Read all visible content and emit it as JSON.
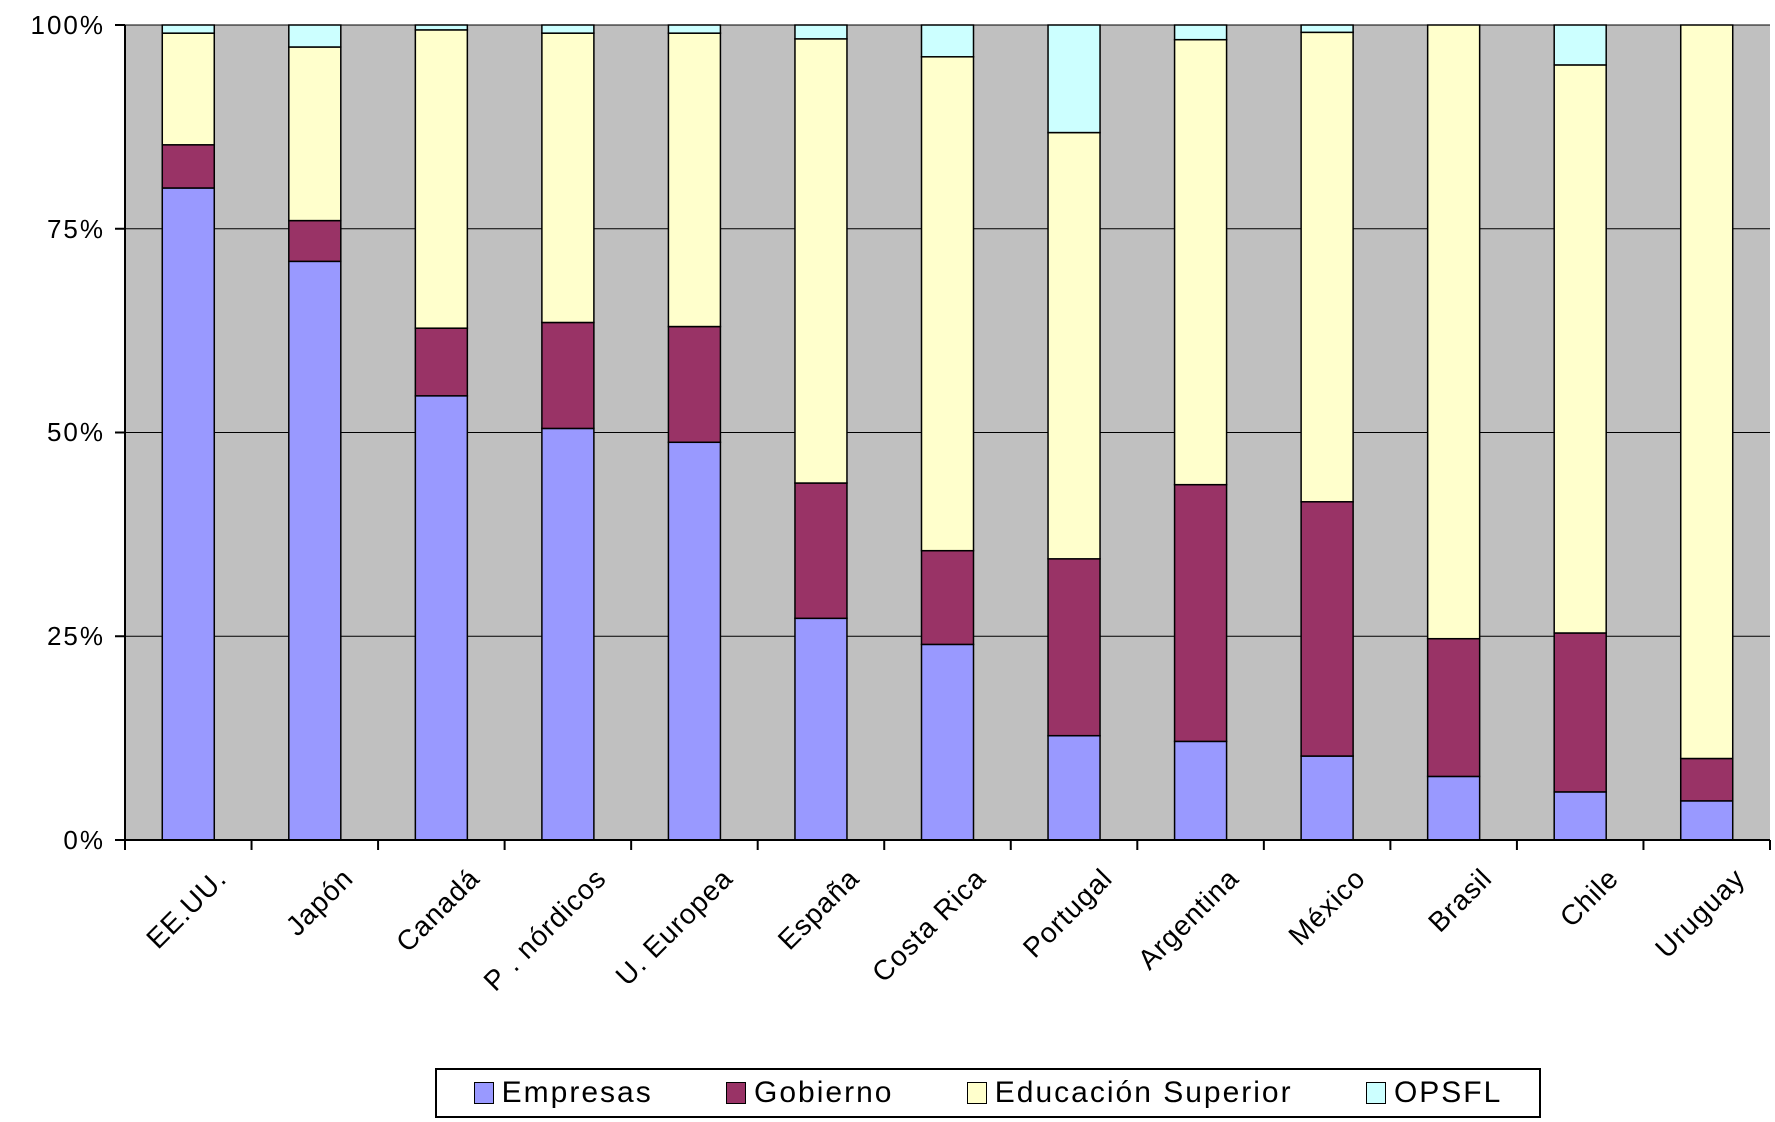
{
  "chart_data": {
    "type": "bar",
    "stacked": true,
    "percent": true,
    "categories": [
      "EE.UU.",
      "Japón",
      "Canadá",
      "P . nórdicos",
      "U. Europea",
      "España",
      "Costa Rica",
      "Portugal",
      "Argentina",
      "México",
      "Brasil",
      "Chile",
      "Uruguay"
    ],
    "series": [
      {
        "name": "Empresas",
        "color": "#9999ff",
        "values": [
          80,
          71,
          54.5,
          50.5,
          48.8,
          27.2,
          24,
          12.8,
          12.1,
          10.3,
          7.8,
          5.9,
          4.8
        ]
      },
      {
        "name": "Gobierno",
        "color": "#993366",
        "values": [
          5.3,
          5,
          8.3,
          13,
          14.2,
          16.6,
          11.5,
          21.7,
          31.5,
          31.2,
          16.9,
          19.5,
          5.2
        ]
      },
      {
        "name": "Educación Superior",
        "color": "#ffffcc",
        "values": [
          13.7,
          21.3,
          36.6,
          35.5,
          36,
          54.5,
          60.6,
          52.3,
          54.6,
          57.6,
          75.3,
          69.7,
          90
        ]
      },
      {
        "name": "OPSFL",
        "color": "#ccffff",
        "values": [
          1,
          2.7,
          0.6,
          1,
          1,
          1.7,
          3.9,
          13.2,
          1.8,
          0.9,
          0,
          4.9,
          0
        ]
      }
    ],
    "ylim": [
      0,
      100
    ],
    "yticks": [
      "0%",
      "25%",
      "50%",
      "75%",
      "100%"
    ],
    "plot_background": "#c0c0c0",
    "grid": true,
    "legend_position": "bottom",
    "title": "",
    "xlabel": "",
    "ylabel": ""
  }
}
